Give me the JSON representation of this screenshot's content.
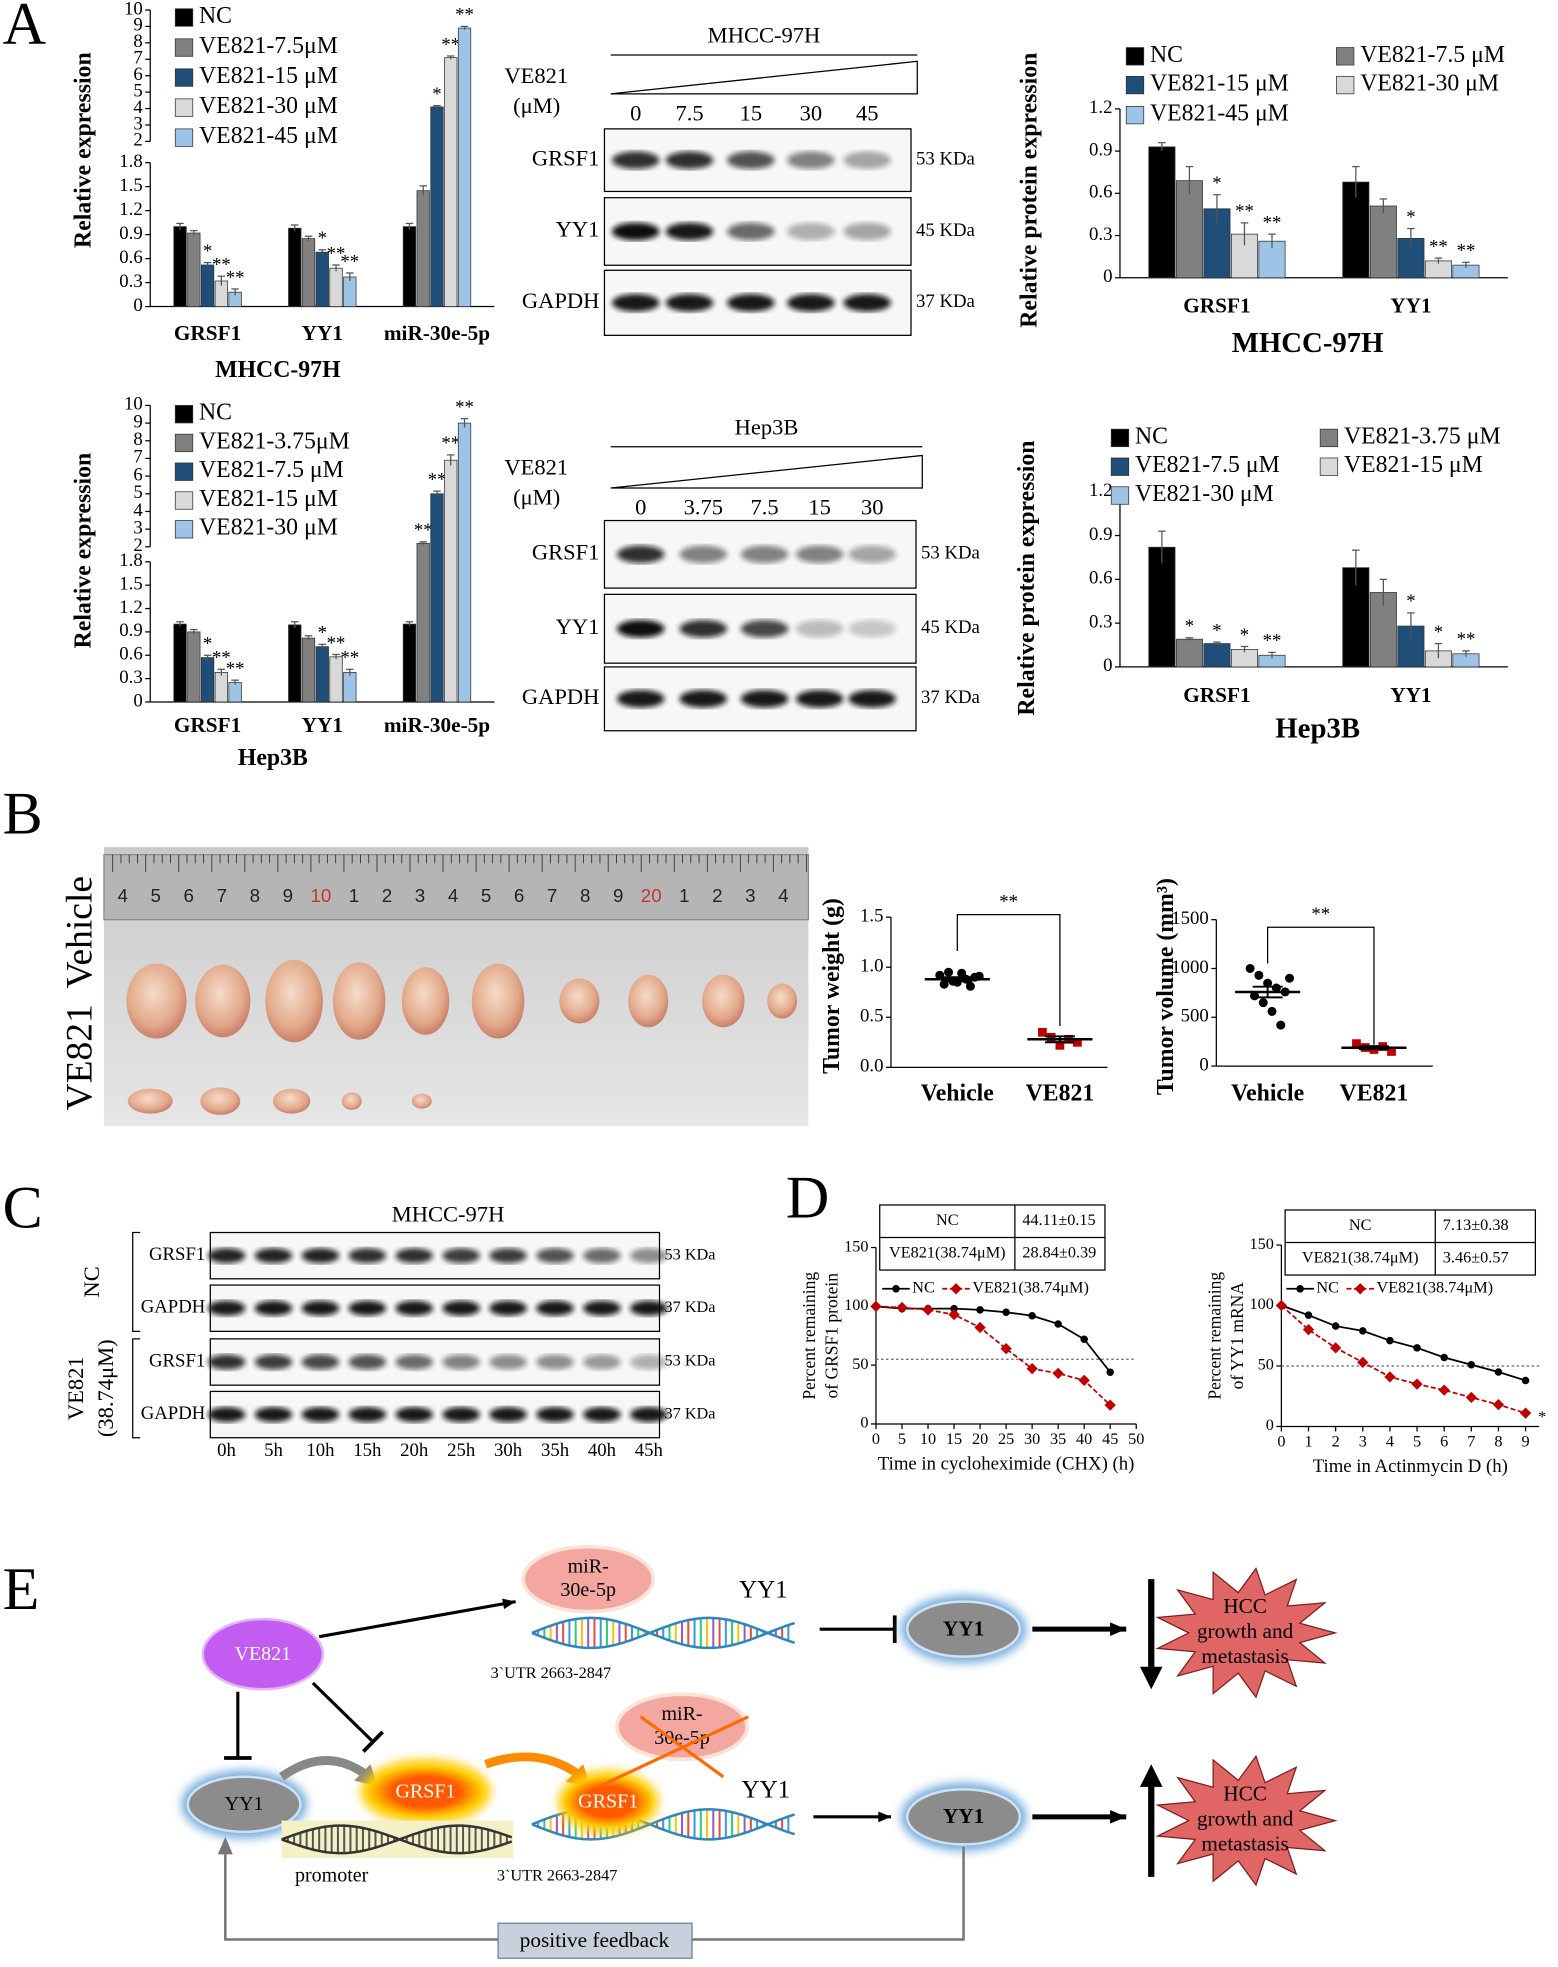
{
  "panels": [
    "A",
    "B",
    "C",
    "D",
    "E"
  ],
  "chart_data": [
    {
      "type": "bar",
      "ylabel": "Relative expression",
      "xlabel": "MHCC-97H",
      "categories": [
        "GRSF1",
        "YY1",
        "miR-30e-5p"
      ],
      "ylim": [
        0,
        10
      ],
      "ybreak": [
        1.8,
        2
      ],
      "yticks": [
        0,
        0.3,
        0.6,
        0.9,
        1.2,
        1.5,
        1.8,
        2,
        3,
        4,
        5,
        6,
        7,
        8,
        9,
        10
      ],
      "series": [
        {
          "name": "NC",
          "color": "#000000",
          "values": [
            1.0,
            0.98,
            1.0
          ],
          "errors": [
            0.04,
            0.04,
            0.04
          ],
          "stars": [
            null,
            null,
            null
          ]
        },
        {
          "name": "VE821-7.5μM",
          "color": "#808080",
          "values": [
            0.92,
            0.85,
            1.45
          ],
          "errors": [
            0.03,
            0.03,
            0.06
          ],
          "stars": [
            null,
            null,
            null
          ]
        },
        {
          "name": "VE821-15 μM",
          "color": "#1f4e79",
          "values": [
            0.52,
            0.68,
            4.1
          ],
          "errors": [
            0.03,
            0.03,
            0.08
          ],
          "stars": [
            "*",
            "*",
            "*"
          ]
        },
        {
          "name": "VE821-30 μM",
          "color": "#d9d9d9",
          "values": [
            0.32,
            0.48,
            7.1
          ],
          "errors": [
            0.06,
            0.04,
            0.1
          ],
          "stars": [
            "**",
            "**",
            "**"
          ]
        },
        {
          "name": "VE821-45 μM",
          "color": "#9dc3e6",
          "values": [
            0.18,
            0.37,
            8.9
          ],
          "errors": [
            0.04,
            0.05,
            0.1
          ],
          "stars": [
            "**",
            "**",
            "**"
          ]
        }
      ]
    },
    {
      "type": "bar",
      "ylabel": "Relative protein expression",
      "xlabel": "MHCC-97H",
      "categories": [
        "GRSF1",
        "YY1"
      ],
      "ylim": [
        0,
        1.2
      ],
      "yticks": [
        0,
        0.3,
        0.6,
        0.9,
        1.2
      ],
      "series": [
        {
          "name": "NC",
          "color": "#000000",
          "values": [
            0.93,
            0.68
          ],
          "errors": [
            0.03,
            0.11
          ],
          "stars": [
            null,
            null
          ]
        },
        {
          "name": "VE821-7.5 μM",
          "color": "#808080",
          "values": [
            0.69,
            0.51
          ],
          "errors": [
            0.1,
            0.05
          ],
          "stars": [
            null,
            null
          ]
        },
        {
          "name": "VE821-15 μM",
          "color": "#1f4e79",
          "values": [
            0.49,
            0.28
          ],
          "errors": [
            0.1,
            0.07
          ],
          "stars": [
            "*",
            "*"
          ]
        },
        {
          "name": "VE821-30 μM",
          "color": "#d9d9d9",
          "values": [
            0.31,
            0.12
          ],
          "errors": [
            0.08,
            0.02
          ],
          "stars": [
            "**",
            "**"
          ]
        },
        {
          "name": "VE821-45 μM",
          "color": "#9dc3e6",
          "values": [
            0.26,
            0.09
          ],
          "errors": [
            0.05,
            0.02
          ],
          "stars": [
            "**",
            "**"
          ]
        }
      ]
    },
    {
      "type": "bar",
      "ylabel": "Relative expression",
      "xlabel": "Hep3B",
      "categories": [
        "GRSF1",
        "YY1",
        "miR-30e-5p"
      ],
      "ylim": [
        0,
        10
      ],
      "ybreak": [
        1.8,
        2
      ],
      "yticks": [
        0,
        0.3,
        0.6,
        0.9,
        1.2,
        1.5,
        1.8,
        2,
        3,
        4,
        5,
        6,
        7,
        8,
        9,
        10
      ],
      "series": [
        {
          "name": "NC",
          "color": "#000000",
          "values": [
            1.0,
            0.99,
            1.0
          ],
          "errors": [
            0.03,
            0.04,
            0.03
          ],
          "stars": [
            null,
            null,
            null
          ]
        },
        {
          "name": "VE821-3.75μM",
          "color": "#808080",
          "values": [
            0.9,
            0.82,
            2.2
          ],
          "errors": [
            0.03,
            0.03,
            0.08
          ],
          "stars": [
            null,
            null,
            "**"
          ]
        },
        {
          "name": "VE821-7.5 μM",
          "color": "#1f4e79",
          "values": [
            0.57,
            0.71,
            5.0
          ],
          "errors": [
            0.03,
            0.03,
            0.15
          ],
          "stars": [
            "*",
            "*",
            "**"
          ]
        },
        {
          "name": "VE821-15  μM",
          "color": "#d9d9d9",
          "values": [
            0.38,
            0.58,
            6.9
          ],
          "errors": [
            0.04,
            0.03,
            0.3
          ],
          "stars": [
            "**",
            "**",
            "**"
          ]
        },
        {
          "name": "VE821-30  μM",
          "color": "#9dc3e6",
          "values": [
            0.25,
            0.38,
            9.0
          ],
          "errors": [
            0.03,
            0.04,
            0.25
          ],
          "stars": [
            "**",
            "**",
            "**"
          ]
        }
      ]
    },
    {
      "type": "bar",
      "ylabel": "Relative protein expression",
      "xlabel": "Hep3B",
      "categories": [
        "GRSF1",
        "YY1"
      ],
      "ylim": [
        0,
        1.2
      ],
      "yticks": [
        0,
        0.3,
        0.6,
        0.9,
        1.2
      ],
      "series": [
        {
          "name": "NC",
          "color": "#000000",
          "values": [
            0.82,
            0.68
          ],
          "errors": [
            0.11,
            0.12
          ],
          "stars": [
            null,
            null
          ]
        },
        {
          "name": "VE821-3.75 μM",
          "color": "#808080",
          "values": [
            0.19,
            0.51
          ],
          "errors": [
            0.01,
            0.09
          ],
          "stars": [
            "*",
            null
          ]
        },
        {
          "name": "VE821-7.5  μM",
          "color": "#1f4e79",
          "values": [
            0.16,
            0.28
          ],
          "errors": [
            0.01,
            0.09
          ],
          "stars": [
            "*",
            "*"
          ]
        },
        {
          "name": "VE821-15  μM",
          "color": "#d9d9d9",
          "values": [
            0.12,
            0.11
          ],
          "errors": [
            0.02,
            0.05
          ],
          "stars": [
            "*",
            "*"
          ]
        },
        {
          "name": "VE821-30 μM",
          "color": "#9dc3e6",
          "values": [
            0.08,
            0.09
          ],
          "errors": [
            0.02,
            0.02
          ],
          "stars": [
            "**",
            "**"
          ]
        }
      ]
    },
    {
      "type": "dot",
      "ylabel": "Tumor weight (g)",
      "categories": [
        "Vehicle",
        "VE821"
      ],
      "ylim": [
        0,
        1.5
      ],
      "yticks": [
        {
          "value": 0,
          "label": "0.0"
        },
        0.5,
        {
          "value": 1,
          "label": "1.0"
        },
        1.5
      ],
      "values": [
        [
          0.92,
          0.95,
          0.85,
          0.88,
          0.9,
          0.83,
          0.86,
          0.94,
          0.81,
          0.91
        ],
        [
          0.35,
          0.3,
          0.22,
          0.28,
          0.25
        ]
      ],
      "means": [
        0.88,
        0.28
      ],
      "errors": [
        0.02,
        0.03
      ],
      "colors": [
        "#000000",
        "#c00000"
      ],
      "significance": "**"
    },
    {
      "type": "dot",
      "ylabel": "Tumor volume (mm³)",
      "categories": [
        "Vehicle",
        "VE821"
      ],
      "ylim": [
        0,
        1500
      ],
      "yticks": [
        0,
        500,
        1000,
        1500
      ],
      "values": [
        [
          1000,
          930,
          850,
          800,
          760,
          720,
          650,
          560,
          420,
          900
        ],
        [
          230,
          190,
          170,
          200,
          150
        ]
      ],
      "means": [
        759,
        188
      ],
      "errors": [
        55,
        15
      ],
      "colors": [
        "#000000",
        "#c00000"
      ],
      "significance": "**"
    },
    {
      "type": "line",
      "ylabel": [
        "Percent remaining",
        "of GRSF1 protein"
      ],
      "xlabel": "Time in cycloheximide (CHX) (h)",
      "x": [
        0,
        5,
        10,
        15,
        20,
        25,
        30,
        35,
        40,
        45
      ],
      "xlim": [
        0,
        50
      ],
      "xticks": [
        0,
        5,
        10,
        15,
        20,
        25,
        30,
        35,
        40,
        45,
        50
      ],
      "ylim": [
        0,
        150
      ],
      "yticks": [
        0,
        50,
        100,
        150
      ],
      "ref_y": 55,
      "series": [
        {
          "name": "NC",
          "color": "#000000",
          "marker": "circle",
          "dashed": false,
          "values": [
            100,
            98,
            98,
            98,
            97,
            95,
            92,
            85,
            72,
            44
          ]
        },
        {
          "name": "VE821(38.74μM)",
          "color": "#c00000",
          "marker": "diamond",
          "dashed": true,
          "values": [
            100,
            99,
            97,
            93,
            82,
            64,
            47,
            43,
            37,
            16
          ]
        }
      ],
      "table": [
        [
          "NC",
          "44.11±0.15"
        ],
        [
          "VE821(38.74μM)",
          "28.84±0.39"
        ]
      ]
    },
    {
      "type": "line",
      "ylabel": [
        "Percent remaining",
        "of YY1 mRNA"
      ],
      "xlabel": "Time in Actinmycin D (h)",
      "x": [
        0,
        1,
        2,
        3,
        4,
        5,
        6,
        7,
        8,
        9
      ],
      "xlim": [
        0,
        9.5
      ],
      "xticks": [
        0,
        1,
        2,
        3,
        4,
        5,
        6,
        7,
        8,
        9
      ],
      "ylim": [
        0,
        150
      ],
      "yticks": [
        0,
        50,
        100,
        150
      ],
      "ref_y": 50,
      "annotation": "*",
      "series": [
        {
          "name": "NC",
          "color": "#000000",
          "marker": "circle",
          "dashed": false,
          "values": [
            100,
            92,
            83,
            79,
            71,
            65,
            57,
            51,
            45,
            38
          ]
        },
        {
          "name": "VE821(38.74μM)",
          "color": "#c00000",
          "marker": "diamond",
          "dashed": true,
          "values": [
            100,
            80,
            65,
            53,
            41,
            35,
            30,
            24,
            18,
            11
          ]
        }
      ],
      "table": [
        [
          "NC",
          "7.13±0.38"
        ],
        [
          "VE821(38.74μM)",
          "3.46±0.57"
        ]
      ]
    }
  ],
  "blots": [
    {
      "title": "MHCC-97H",
      "treatment": "VE821",
      "unit": "(μM)",
      "lanes": [
        "0",
        "7.5",
        "15",
        "30",
        "45"
      ],
      "rows": [
        {
          "protein": "GRSF1",
          "size": "53 KDa"
        },
        {
          "protein": "YY1",
          "size": "45 KDa"
        },
        {
          "protein": "GAPDH",
          "size": "37 KDa"
        }
      ]
    },
    {
      "title": "Hep3B",
      "treatment": "VE821",
      "unit": "(μM)",
      "lanes": [
        "0",
        "3.75",
        "7.5",
        "15",
        "30"
      ],
      "rows": [
        {
          "protein": "GRSF1",
          "size": "53 KDa"
        },
        {
          "protein": "YY1",
          "size": "45 KDa"
        },
        {
          "protein": "GAPDH",
          "size": "37 KDa"
        }
      ]
    }
  ],
  "time_blot": {
    "title": "MHCC-97H",
    "groups": [
      {
        "label": [
          "NC"
        ],
        "rows": [
          {
            "protein": "GRSF1",
            "size": "53 KDa"
          },
          {
            "protein": "GAPDH",
            "size": "37 KDa"
          }
        ]
      },
      {
        "label": [
          "VE821",
          "(38.74μM)"
        ],
        "rows": [
          {
            "protein": "GRSF1",
            "size": "53 KDa"
          },
          {
            "protein": "GAPDH",
            "size": "37 KDa"
          }
        ]
      }
    ],
    "times": [
      "0h",
      "5h",
      "10h",
      "15h",
      "20h",
      "25h",
      "30h",
      "35h",
      "40h",
      "45h"
    ]
  },
  "photo": {
    "labels": [
      "VE821",
      "Vehicle"
    ],
    "ruler": [
      "4",
      "5",
      "6",
      "7",
      "8",
      "9",
      "10",
      "1",
      "2",
      "3",
      "4",
      "5",
      "6",
      "7",
      "8",
      "9",
      "20",
      "1",
      "2",
      "3",
      "4"
    ]
  },
  "diagram": {
    "drug": "VE821",
    "mirna": [
      "miR-",
      "30e-5p"
    ],
    "gene": "YY1",
    "utr": "3`UTR  2663-2847",
    "protein": "GRSF1",
    "promoter": "promoter",
    "outcome": [
      "HCC",
      "growth  and",
      "metastasis"
    ],
    "feedback": "positive feedback"
  }
}
